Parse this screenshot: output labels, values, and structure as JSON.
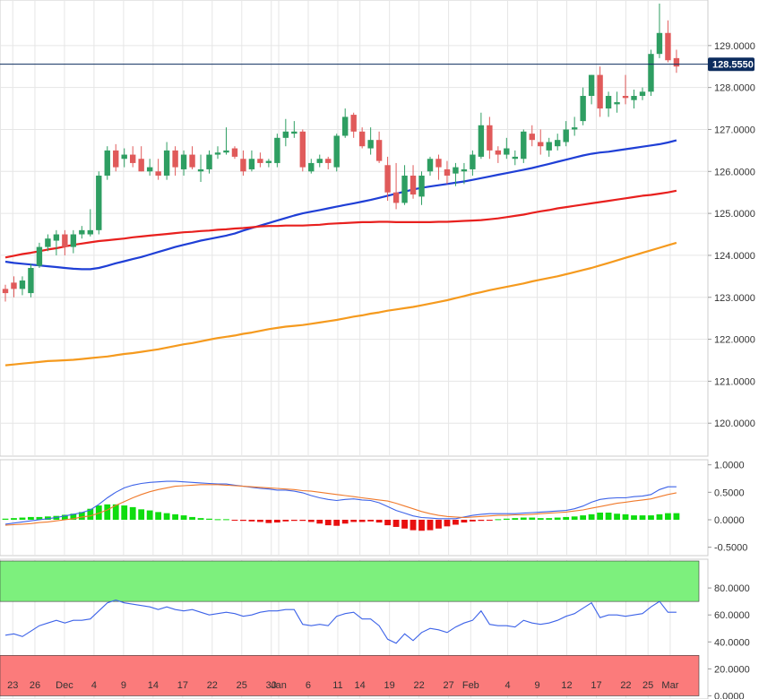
{
  "colors": {
    "bull": "#2e9e62",
    "bear": "#e05a5a",
    "sma20": "#1f3fd6",
    "sma100": "#e8201e",
    "sma200": "#f59a1e",
    "price_line": "#0c2c5e",
    "macd_line": "#3d63e8",
    "signal_line": "#f07a2c",
    "hist_pos": "#0fdd0f",
    "hist_neg": "#e81010",
    "rsi_line": "#3d63e8",
    "overbought": "#7df07d",
    "oversold": "#fb7b7b"
  },
  "chart_data": [
    {
      "type": "candlestick",
      "title": "",
      "current_price_label": "128.5550",
      "ylim": [
        119.3,
        130.0
      ],
      "y_ticks": [
        "129.0000",
        "128.0000",
        "127.0000",
        "126.0000",
        "125.0000",
        "124.0000",
        "123.0000",
        "122.0000",
        "121.0000",
        "120.0000"
      ],
      "x_tick_labels": [
        "23",
        "26",
        "Dec",
        "4",
        "9",
        "14",
        "17",
        "22",
        "25",
        "30",
        "Jan",
        "6",
        "11",
        "14",
        "19",
        "22",
        "27",
        "Feb",
        "4",
        "9",
        "12",
        "17",
        "22",
        "25",
        "Mar"
      ],
      "candles": [
        [
          123.2,
          123.3,
          122.9,
          123.1
        ],
        [
          123.35,
          123.5,
          123.0,
          123.2
        ],
        [
          123.2,
          123.5,
          123.05,
          123.4
        ],
        [
          123.1,
          123.8,
          123.0,
          123.7
        ],
        [
          123.75,
          124.3,
          123.7,
          124.2
        ],
        [
          124.2,
          124.5,
          124.1,
          124.4
        ],
        [
          124.35,
          124.6,
          124.0,
          124.5
        ],
        [
          124.5,
          124.6,
          124.0,
          124.2
        ],
        [
          124.2,
          124.6,
          124.05,
          124.5
        ],
        [
          124.5,
          124.7,
          124.4,
          124.6
        ],
        [
          124.5,
          125.1,
          124.45,
          124.6
        ],
        [
          124.6,
          126.0,
          124.5,
          125.9
        ],
        [
          125.9,
          126.6,
          125.8,
          126.5
        ],
        [
          126.5,
          126.65,
          126.0,
          126.1
        ],
        [
          126.3,
          126.55,
          126.1,
          126.4
        ],
        [
          126.4,
          126.6,
          126.1,
          126.2
        ],
        [
          126.3,
          126.6,
          126.0,
          126.0
        ],
        [
          126.0,
          126.3,
          125.9,
          126.1
        ],
        [
          126.0,
          126.3,
          125.8,
          125.9
        ],
        [
          125.9,
          126.7,
          125.8,
          126.5
        ],
        [
          126.5,
          126.6,
          125.9,
          126.1
        ],
        [
          126.05,
          126.5,
          125.9,
          126.4
        ],
        [
          126.4,
          126.6,
          126.05,
          126.1
        ],
        [
          126.0,
          126.4,
          125.75,
          126.05
        ],
        [
          126.05,
          126.5,
          125.95,
          126.4
        ],
        [
          126.4,
          126.6,
          126.3,
          126.45
        ],
        [
          126.45,
          127.05,
          126.4,
          126.5
        ],
        [
          126.55,
          126.6,
          126.3,
          126.35
        ],
        [
          126.3,
          126.5,
          125.9,
          126.0
        ],
        [
          126.05,
          126.5,
          126.0,
          126.3
        ],
        [
          126.3,
          126.45,
          126.1,
          126.2
        ],
        [
          126.2,
          126.3,
          126.1,
          126.25
        ],
        [
          126.2,
          126.9,
          126.1,
          126.8
        ],
        [
          126.8,
          127.25,
          126.6,
          126.95
        ],
        [
          126.9,
          127.2,
          126.8,
          126.95
        ],
        [
          126.95,
          127.0,
          126.0,
          126.1
        ],
        [
          126.0,
          126.3,
          125.95,
          126.2
        ],
        [
          126.2,
          126.4,
          126.1,
          126.3
        ],
        [
          126.3,
          126.35,
          126.05,
          126.2
        ],
        [
          126.1,
          126.9,
          126.0,
          126.85
        ],
        [
          126.85,
          127.5,
          126.8,
          127.3
        ],
        [
          127.35,
          127.4,
          126.8,
          126.95
        ],
        [
          126.95,
          127.05,
          126.55,
          126.6
        ],
        [
          126.55,
          127.05,
          126.4,
          126.75
        ],
        [
          126.75,
          126.95,
          126.2,
          126.25
        ],
        [
          126.15,
          126.35,
          125.3,
          125.5
        ],
        [
          125.5,
          126.2,
          125.1,
          125.25
        ],
        [
          125.25,
          126.15,
          125.2,
          125.9
        ],
        [
          125.9,
          126.15,
          125.35,
          125.45
        ],
        [
          125.4,
          126.0,
          125.2,
          125.9
        ],
        [
          126.0,
          126.35,
          125.9,
          126.3
        ],
        [
          126.3,
          126.4,
          125.8,
          126.1
        ],
        [
          126.05,
          126.25,
          125.7,
          125.9
        ],
        [
          125.95,
          126.2,
          125.65,
          126.1
        ],
        [
          126.0,
          126.2,
          125.7,
          126.05
        ],
        [
          126.05,
          126.5,
          125.9,
          126.4
        ],
        [
          126.35,
          127.4,
          126.3,
          127.1
        ],
        [
          127.1,
          127.3,
          126.3,
          126.5
        ],
        [
          126.5,
          126.6,
          126.2,
          126.4
        ],
        [
          126.4,
          126.8,
          126.3,
          126.55
        ],
        [
          126.3,
          126.5,
          126.15,
          126.35
        ],
        [
          126.3,
          127.0,
          126.2,
          126.95
        ],
        [
          126.9,
          127.1,
          126.6,
          126.75
        ],
        [
          126.7,
          127.0,
          126.4,
          126.6
        ],
        [
          126.5,
          126.8,
          126.35,
          126.7
        ],
        [
          126.6,
          126.9,
          126.5,
          126.75
        ],
        [
          126.7,
          127.2,
          126.6,
          127.0
        ],
        [
          127.0,
          127.3,
          126.85,
          127.05
        ],
        [
          127.2,
          128.0,
          127.1,
          127.8
        ],
        [
          127.8,
          128.3,
          127.6,
          128.3
        ],
        [
          128.3,
          128.5,
          127.3,
          127.5
        ],
        [
          127.5,
          127.9,
          127.3,
          127.8
        ],
        [
          127.6,
          127.9,
          127.4,
          127.65
        ],
        [
          127.8,
          128.3,
          127.6,
          127.75
        ],
        [
          127.7,
          127.95,
          127.5,
          127.8
        ],
        [
          127.8,
          128.0,
          127.7,
          127.9
        ],
        [
          127.9,
          128.9,
          127.8,
          128.8
        ],
        [
          128.8,
          130.0,
          128.7,
          129.3
        ],
        [
          129.3,
          129.6,
          128.6,
          128.65
        ],
        [
          128.7,
          128.9,
          128.35,
          128.5
        ]
      ],
      "series": [
        {
          "name": "SMA 20",
          "values": [
            123.85,
            123.82,
            123.8,
            123.78,
            123.76,
            123.74,
            123.72,
            123.7,
            123.68,
            123.67,
            123.67,
            123.7,
            123.75,
            123.81,
            123.86,
            123.91,
            123.96,
            124.02,
            124.08,
            124.14,
            124.2,
            124.25,
            124.3,
            124.35,
            124.39,
            124.43,
            124.47,
            124.52,
            124.59,
            124.65,
            124.71,
            124.77,
            124.83,
            124.89,
            124.95,
            125.0,
            125.04,
            125.08,
            125.12,
            125.16,
            125.2,
            125.24,
            125.28,
            125.32,
            125.37,
            125.42,
            125.47,
            125.52,
            125.57,
            125.61,
            125.64,
            125.67,
            125.7,
            125.73,
            125.76,
            125.8,
            125.84,
            125.88,
            125.92,
            125.96,
            126.0,
            126.04,
            126.08,
            126.13,
            126.18,
            126.23,
            126.28,
            126.33,
            126.38,
            126.42,
            126.45,
            126.47,
            126.5,
            126.53,
            126.56,
            126.59,
            126.62,
            126.65,
            126.69,
            126.74
          ]
        },
        {
          "name": "SMA 100",
          "values": [
            123.95,
            123.99,
            124.03,
            124.06,
            124.1,
            124.14,
            124.17,
            124.21,
            124.25,
            124.28,
            124.31,
            124.34,
            124.36,
            124.38,
            124.4,
            124.43,
            124.45,
            124.47,
            124.49,
            124.51,
            124.53,
            124.55,
            124.56,
            124.58,
            124.59,
            124.61,
            124.62,
            124.64,
            124.65,
            124.67,
            124.69,
            124.7,
            124.7,
            124.71,
            124.71,
            124.71,
            124.72,
            124.73,
            124.75,
            124.76,
            124.77,
            124.78,
            124.79,
            124.79,
            124.8,
            124.8,
            124.79,
            124.79,
            124.79,
            124.79,
            124.79,
            124.8,
            124.8,
            124.81,
            124.82,
            124.83,
            124.84,
            124.86,
            124.88,
            124.91,
            124.94,
            124.97,
            125.01,
            125.05,
            125.08,
            125.12,
            125.15,
            125.18,
            125.21,
            125.24,
            125.27,
            125.3,
            125.33,
            125.36,
            125.39,
            125.42,
            125.44,
            125.47,
            125.5,
            125.54
          ]
        },
        {
          "name": "SMA 200",
          "values": [
            121.38,
            121.4,
            121.42,
            121.44,
            121.46,
            121.48,
            121.49,
            121.5,
            121.51,
            121.53,
            121.55,
            121.57,
            121.59,
            121.62,
            121.65,
            121.67,
            121.7,
            121.73,
            121.76,
            121.8,
            121.84,
            121.88,
            121.91,
            121.95,
            121.99,
            122.03,
            122.06,
            122.09,
            122.13,
            122.16,
            122.2,
            122.24,
            122.27,
            122.3,
            122.32,
            122.34,
            122.37,
            122.4,
            122.43,
            122.46,
            122.5,
            122.54,
            122.57,
            122.61,
            122.64,
            122.68,
            122.71,
            122.74,
            122.77,
            122.81,
            122.85,
            122.89,
            122.93,
            122.98,
            123.03,
            123.08,
            123.12,
            123.17,
            123.21,
            123.25,
            123.29,
            123.33,
            123.38,
            123.42,
            123.46,
            123.5,
            123.55,
            123.6,
            123.65,
            123.7,
            123.76,
            123.82,
            123.88,
            123.94,
            124.0,
            124.06,
            124.12,
            124.18,
            124.24,
            124.3
          ]
        }
      ]
    },
    {
      "type": "macd",
      "ylim": [
        -0.62,
        1.06
      ],
      "y_ticks": [
        "1.0000",
        "0.5000",
        "0.0000",
        "-0.5000"
      ],
      "series": [
        {
          "name": "MACD",
          "values": [
            -0.08,
            -0.06,
            -0.04,
            -0.02,
            0.0,
            0.02,
            0.04,
            0.07,
            0.1,
            0.13,
            0.18,
            0.28,
            0.4,
            0.5,
            0.58,
            0.63,
            0.66,
            0.68,
            0.69,
            0.7,
            0.7,
            0.69,
            0.68,
            0.67,
            0.66,
            0.65,
            0.65,
            0.63,
            0.61,
            0.59,
            0.57,
            0.56,
            0.54,
            0.54,
            0.52,
            0.49,
            0.44,
            0.4,
            0.37,
            0.35,
            0.37,
            0.38,
            0.36,
            0.35,
            0.31,
            0.24,
            0.17,
            0.12,
            0.07,
            0.04,
            0.03,
            0.02,
            0.02,
            0.02,
            0.05,
            0.08,
            0.1,
            0.11,
            0.11,
            0.11,
            0.11,
            0.12,
            0.13,
            0.14,
            0.15,
            0.16,
            0.17,
            0.2,
            0.25,
            0.32,
            0.37,
            0.39,
            0.4,
            0.4,
            0.42,
            0.43,
            0.46,
            0.55,
            0.6,
            0.6
          ]
        },
        {
          "name": "Signal",
          "values": [
            -0.1,
            -0.09,
            -0.08,
            -0.07,
            -0.05,
            -0.04,
            -0.02,
            0.0,
            0.02,
            0.05,
            0.07,
            0.12,
            0.18,
            0.26,
            0.33,
            0.4,
            0.46,
            0.51,
            0.55,
            0.58,
            0.61,
            0.62,
            0.63,
            0.64,
            0.64,
            0.64,
            0.63,
            0.62,
            0.61,
            0.6,
            0.59,
            0.58,
            0.57,
            0.56,
            0.55,
            0.53,
            0.52,
            0.5,
            0.48,
            0.46,
            0.44,
            0.42,
            0.4,
            0.38,
            0.36,
            0.34,
            0.3,
            0.25,
            0.2,
            0.15,
            0.11,
            0.08,
            0.06,
            0.05,
            0.04,
            0.05,
            0.06,
            0.07,
            0.08,
            0.08,
            0.09,
            0.09,
            0.1,
            0.11,
            0.12,
            0.13,
            0.14,
            0.16,
            0.18,
            0.21,
            0.24,
            0.27,
            0.3,
            0.32,
            0.34,
            0.36,
            0.38,
            0.42,
            0.46,
            0.49
          ]
        }
      ],
      "histogram": [
        0.02,
        0.03,
        0.04,
        0.05,
        0.05,
        0.06,
        0.07,
        0.09,
        0.11,
        0.14,
        0.2,
        0.26,
        0.28,
        0.28,
        0.26,
        0.23,
        0.19,
        0.17,
        0.14,
        0.12,
        0.1,
        0.08,
        0.05,
        0.03,
        0.02,
        0.01,
        0.01,
        -0.01,
        -0.02,
        -0.03,
        -0.04,
        -0.06,
        -0.05,
        -0.03,
        -0.02,
        -0.02,
        -0.04,
        -0.07,
        -0.1,
        -0.11,
        -0.07,
        -0.04,
        -0.04,
        -0.03,
        -0.05,
        -0.1,
        -0.13,
        -0.16,
        -0.19,
        -0.2,
        -0.19,
        -0.16,
        -0.12,
        -0.09,
        -0.05,
        -0.03,
        -0.02,
        -0.01,
        0.01,
        0.02,
        0.03,
        0.04,
        0.04,
        0.03,
        0.03,
        0.04,
        0.05,
        0.06,
        0.08,
        0.1,
        0.13,
        0.13,
        0.11,
        0.1,
        0.08,
        0.08,
        0.08,
        0.1,
        0.12,
        0.12
      ]
    },
    {
      "type": "rsi",
      "ylim": [
        -1,
        100
      ],
      "y_ticks": [
        "80.0000",
        "60.0000",
        "40.0000",
        "20.0000",
        "0.0000"
      ],
      "overbought": 70,
      "oversold": 30,
      "series": [
        {
          "name": "RSI",
          "values": [
            45,
            46,
            44,
            48,
            52,
            54,
            56,
            54,
            56,
            56,
            57,
            63,
            69,
            71,
            69,
            68,
            67,
            66,
            64,
            66,
            64,
            63,
            64,
            62,
            60,
            61,
            62,
            61,
            59,
            60,
            62,
            63,
            63,
            64,
            64,
            53,
            52,
            53,
            52,
            59,
            61,
            62,
            57,
            57,
            52,
            42,
            39,
            46,
            41,
            47,
            50,
            49,
            47,
            51,
            54,
            56,
            63,
            53,
            52,
            52,
            51,
            56,
            54,
            53,
            54,
            56,
            59,
            61,
            65,
            69,
            58,
            60,
            60,
            59,
            60,
            61,
            66,
            70,
            62,
            62
          ]
        }
      ]
    }
  ]
}
